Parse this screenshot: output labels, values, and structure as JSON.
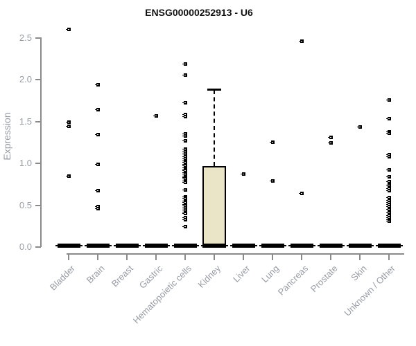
{
  "chart_data": {
    "type": "boxplot",
    "title": "ENSG00000252913 - U6",
    "ylabel": "Expression",
    "xlabel": "",
    "ylim": [
      0,
      2.65
    ],
    "yticks": [
      0.0,
      0.5,
      1.0,
      1.5,
      2.0,
      2.5
    ],
    "grid": false,
    "legend": false,
    "categories": [
      "Bladder",
      "Brain",
      "Breast",
      "Gastric",
      "Hematopoietic cells",
      "Kidney",
      "Liver",
      "Lung",
      "Pancreas",
      "Prostate",
      "Skin",
      "Unknown / Other"
    ],
    "series": [
      {
        "category": "Bladder",
        "box": {
          "q1": 0,
          "median": 0,
          "q3": 0.02,
          "whisker_low": 0,
          "whisker_high": 0.02
        },
        "points": [
          2.6,
          1.49,
          1.44,
          0.85
        ]
      },
      {
        "category": "Brain",
        "box": {
          "q1": 0,
          "median": 0,
          "q3": 0.02,
          "whisker_low": 0,
          "whisker_high": 0.02
        },
        "points": [
          1.94,
          1.64,
          1.34,
          0.99,
          0.67,
          0.48,
          0.46
        ]
      },
      {
        "category": "Breast",
        "box": {
          "q1": 0,
          "median": 0,
          "q3": 0.02,
          "whisker_low": 0,
          "whisker_high": 0.02
        },
        "points": []
      },
      {
        "category": "Gastric",
        "box": {
          "q1": 0,
          "median": 0,
          "q3": 0.02,
          "whisker_low": 0,
          "whisker_high": 0.02
        },
        "points": [
          1.57
        ]
      },
      {
        "category": "Hematopoietic cells",
        "box": {
          "q1": 0,
          "median": 0,
          "q3": 0.02,
          "whisker_low": 0,
          "whisker_high": 0.02
        },
        "points": [
          2.19,
          2.05,
          1.72,
          1.58,
          1.56,
          1.35,
          1.33,
          1.27,
          1.17,
          1.14,
          1.11,
          1.08,
          1.05,
          1.03,
          1.01,
          0.99,
          0.97,
          0.95,
          0.93,
          0.91,
          0.89,
          0.87,
          0.85,
          0.83,
          0.81,
          0.79,
          0.77,
          0.68,
          0.6,
          0.58,
          0.55,
          0.53,
          0.51,
          0.49,
          0.47,
          0.44,
          0.42,
          0.4,
          0.35,
          0.33,
          0.24
        ]
      },
      {
        "category": "Kidney",
        "box": {
          "q1": 0,
          "median": 0.01,
          "q3": 0.96,
          "whisker_low": 0,
          "whisker_high": 1.87
        },
        "points": []
      },
      {
        "category": "Liver",
        "box": {
          "q1": 0,
          "median": 0,
          "q3": 0.02,
          "whisker_low": 0,
          "whisker_high": 0.02
        },
        "points": [
          0.87
        ]
      },
      {
        "category": "Lung",
        "box": {
          "q1": 0,
          "median": 0,
          "q3": 0.02,
          "whisker_low": 0,
          "whisker_high": 0.02
        },
        "points": [
          1.25,
          0.79
        ]
      },
      {
        "category": "Pancreas",
        "box": {
          "q1": 0,
          "median": 0,
          "q3": 0.02,
          "whisker_low": 0,
          "whisker_high": 0.02
        },
        "points": [
          2.46,
          0.64
        ]
      },
      {
        "category": "Prostate",
        "box": {
          "q1": 0,
          "median": 0,
          "q3": 0.02,
          "whisker_low": 0,
          "whisker_high": 0.02
        },
        "points": [
          1.31,
          1.24
        ]
      },
      {
        "category": "Skin",
        "box": {
          "q1": 0,
          "median": 0,
          "q3": 0.02,
          "whisker_low": 0,
          "whisker_high": 0.02
        },
        "points": [
          1.43
        ]
      },
      {
        "category": "Unknown / Other",
        "box": {
          "q1": 0,
          "median": 0,
          "q3": 0.02,
          "whisker_low": 0,
          "whisker_high": 0.02
        },
        "points": [
          1.76,
          1.53,
          1.38,
          1.36,
          1.1,
          1.08,
          0.92,
          0.84,
          0.78,
          0.74,
          0.7,
          0.67,
          0.59,
          0.56,
          0.53,
          0.51,
          0.48,
          0.45,
          0.41,
          0.38,
          0.35,
          0.33,
          0.31
        ]
      }
    ],
    "colors": {
      "box_fill": "#ebe5c8",
      "box_border": "#000000",
      "point": "#000000",
      "axis": "#8a8a8a",
      "tick_label": "#979ca4",
      "title": "#111111"
    }
  }
}
